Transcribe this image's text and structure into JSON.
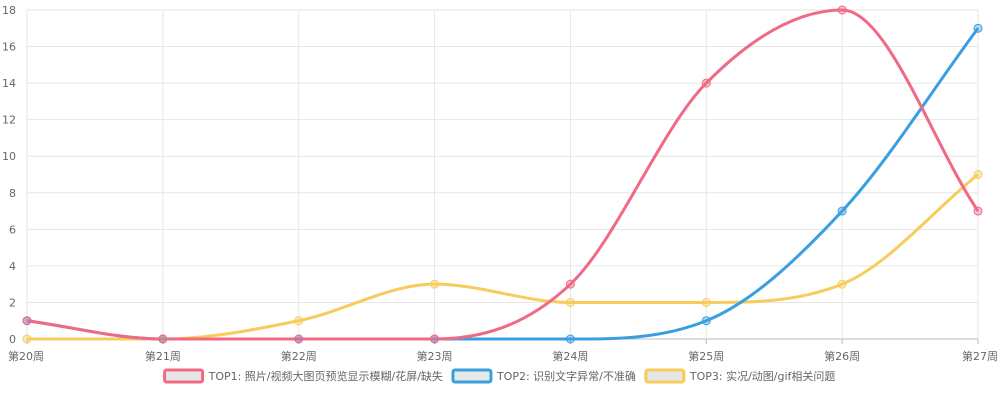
{
  "chart_data": {
    "type": "line",
    "categories": [
      "第20周",
      "第21周",
      "第22周",
      "第23周",
      "第24周",
      "第25周",
      "第26周",
      "第27周"
    ],
    "ylim": [
      0,
      18
    ],
    "ytick_step": 2,
    "grid": true,
    "legend_position": "bottom",
    "series": [
      {
        "name": "TOP1: 照片/视频大图页预览显示模糊/花屏/缺失",
        "color": "#f06a86",
        "values": [
          1,
          0,
          0,
          0,
          3,
          14,
          18,
          7
        ]
      },
      {
        "name": "TOP2: 识别文字异常/不准确",
        "color": "#3a9fe0",
        "values": [
          1,
          0,
          0,
          0,
          0,
          1,
          7,
          17
        ]
      },
      {
        "name": "TOP3: 实况/动图/gif相关问题",
        "color": "#f7cc5c",
        "values": [
          0,
          0,
          1,
          3,
          2,
          2,
          3,
          9
        ]
      }
    ]
  }
}
